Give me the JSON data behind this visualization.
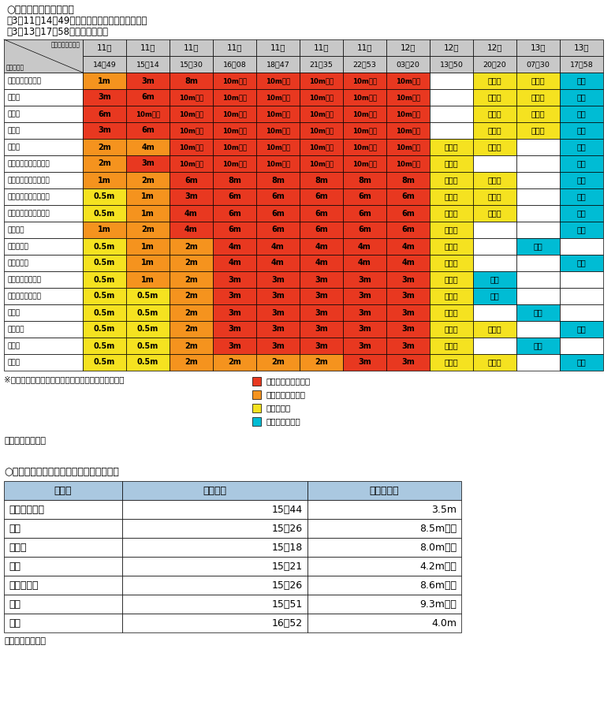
{
  "title1": "○津波警報等の発表状況",
  "bullet1": "・3月11日14時49分　津波警報（大津波）等発表",
  "bullet2": "・3月13日17時58分　すべて解除",
  "header_row1": [
    "津波警報発表日時",
    "11日",
    "11日",
    "11日",
    "11日",
    "11日",
    "11日",
    "11日",
    "12日",
    "12日",
    "12日",
    "13日",
    "13日"
  ],
  "header_row2": [
    "津波予報区",
    "14：49",
    "15：14",
    "15：30",
    "16：08",
    "18：47",
    "21：35",
    "22：53",
    "03：20",
    "13：50",
    "20：20",
    "07：30",
    "17：58"
  ],
  "rows": [
    {
      "name": "青森県太平洋沿岸",
      "cells": [
        "1m",
        "3m",
        "8m",
        "10m以上",
        "10m以上",
        "10m以上",
        "10m以上",
        "10m以上",
        "",
        "切下げ",
        "切下げ",
        "解除"
      ],
      "colors": [
        "orange",
        "red",
        "red",
        "red",
        "red",
        "red",
        "red",
        "red",
        "white",
        "yellow",
        "yellow",
        "cyan"
      ]
    },
    {
      "name": "岩手県",
      "cells": [
        "3m",
        "6m",
        "10m以上",
        "10m以上",
        "10m以上",
        "10m以上",
        "10m以上",
        "10m以上",
        "",
        "切下げ",
        "切下げ",
        "解除"
      ],
      "colors": [
        "red",
        "red",
        "red",
        "red",
        "red",
        "red",
        "red",
        "red",
        "white",
        "yellow",
        "yellow",
        "cyan"
      ]
    },
    {
      "name": "宮城県",
      "cells": [
        "6m",
        "10m以上",
        "10m以上",
        "10m以上",
        "10m以上",
        "10m以上",
        "10m以上",
        "10m以上",
        "",
        "切下げ",
        "切下げ",
        "解除"
      ],
      "colors": [
        "red",
        "red",
        "red",
        "red",
        "red",
        "red",
        "red",
        "red",
        "white",
        "yellow",
        "yellow",
        "cyan"
      ]
    },
    {
      "name": "福島県",
      "cells": [
        "3m",
        "6m",
        "10m以上",
        "10m以上",
        "10m以上",
        "10m以上",
        "10m以上",
        "10m以上",
        "",
        "切下げ",
        "切下げ",
        "解除"
      ],
      "colors": [
        "red",
        "red",
        "red",
        "red",
        "red",
        "red",
        "red",
        "red",
        "white",
        "yellow",
        "yellow",
        "cyan"
      ]
    },
    {
      "name": "茨城県",
      "cells": [
        "2m",
        "4m",
        "10m以上",
        "10m以上",
        "10m以上",
        "10m以上",
        "10m以上",
        "10m以上",
        "切下げ",
        "切下げ",
        "",
        "解除"
      ],
      "colors": [
        "orange",
        "orange",
        "red",
        "red",
        "red",
        "red",
        "red",
        "red",
        "yellow",
        "yellow",
        "white",
        "cyan"
      ]
    },
    {
      "name": "千葉県九十九里・外房",
      "cells": [
        "2m",
        "3m",
        "10m以上",
        "10m以上",
        "10m以上",
        "10m以上",
        "10m以上",
        "10m以上",
        "切下げ",
        "",
        "",
        "解除"
      ],
      "colors": [
        "orange",
        "red",
        "red",
        "red",
        "red",
        "red",
        "red",
        "red",
        "yellow",
        "white",
        "white",
        "cyan"
      ]
    },
    {
      "name": "北海道太平洋沿岸中部",
      "cells": [
        "1m",
        "2m",
        "6m",
        "8m",
        "8m",
        "8m",
        "8m",
        "8m",
        "切下げ",
        "切下げ",
        "",
        "解除"
      ],
      "colors": [
        "orange",
        "orange",
        "red",
        "red",
        "red",
        "red",
        "red",
        "red",
        "yellow",
        "yellow",
        "white",
        "cyan"
      ]
    },
    {
      "name": "北海道太平洋沿岸東部",
      "cells": [
        "0.5m",
        "1m",
        "3m",
        "6m",
        "6m",
        "6m",
        "6m",
        "6m",
        "切下げ",
        "切下げ",
        "",
        "解除"
      ],
      "colors": [
        "yellow",
        "orange",
        "red",
        "red",
        "red",
        "red",
        "red",
        "red",
        "yellow",
        "yellow",
        "white",
        "cyan"
      ]
    },
    {
      "name": "北海道太平洋沿岸西部",
      "cells": [
        "0.5m",
        "1m",
        "4m",
        "6m",
        "6m",
        "6m",
        "6m",
        "6m",
        "切下げ",
        "切下げ",
        "",
        "解除"
      ],
      "colors": [
        "yellow",
        "orange",
        "red",
        "red",
        "red",
        "red",
        "red",
        "red",
        "yellow",
        "yellow",
        "white",
        "cyan"
      ]
    },
    {
      "name": "伊豆諸島",
      "cells": [
        "1m",
        "2m",
        "4m",
        "6m",
        "6m",
        "6m",
        "6m",
        "6m",
        "切下げ",
        "",
        "",
        "解除"
      ],
      "colors": [
        "orange",
        "orange",
        "red",
        "red",
        "red",
        "red",
        "red",
        "red",
        "yellow",
        "white",
        "white",
        "cyan"
      ]
    },
    {
      "name": "千葉県内房",
      "cells": [
        "0.5m",
        "1m",
        "2m",
        "4m",
        "4m",
        "4m",
        "4m",
        "4m",
        "切下げ",
        "",
        "解除",
        ""
      ],
      "colors": [
        "yellow",
        "orange",
        "orange",
        "red",
        "red",
        "red",
        "red",
        "red",
        "yellow",
        "white",
        "cyan",
        "white"
      ]
    },
    {
      "name": "小笠原諸島",
      "cells": [
        "0.5m",
        "1m",
        "2m",
        "4m",
        "4m",
        "4m",
        "4m",
        "4m",
        "切下げ",
        "",
        "",
        "解除"
      ],
      "colors": [
        "yellow",
        "orange",
        "orange",
        "red",
        "red",
        "red",
        "red",
        "red",
        "yellow",
        "white",
        "white",
        "cyan"
      ]
    },
    {
      "name": "青森県日本海沿岸",
      "cells": [
        "0.5m",
        "1m",
        "2m",
        "3m",
        "3m",
        "3m",
        "3m",
        "3m",
        "切下げ",
        "解除",
        "",
        ""
      ],
      "colors": [
        "yellow",
        "orange",
        "orange",
        "red",
        "red",
        "red",
        "red",
        "red",
        "yellow",
        "cyan",
        "white",
        "white"
      ]
    },
    {
      "name": "相模湾・三浦半島",
      "cells": [
        "0.5m",
        "0.5m",
        "2m",
        "3m",
        "3m",
        "3m",
        "3m",
        "3m",
        "切下げ",
        "解除",
        "",
        ""
      ],
      "colors": [
        "yellow",
        "yellow",
        "orange",
        "red",
        "red",
        "red",
        "red",
        "red",
        "yellow",
        "cyan",
        "white",
        "white"
      ]
    },
    {
      "name": "静岡県",
      "cells": [
        "0.5m",
        "0.5m",
        "2m",
        "3m",
        "3m",
        "3m",
        "3m",
        "3m",
        "切下げ",
        "",
        "解除",
        ""
      ],
      "colors": [
        "yellow",
        "yellow",
        "orange",
        "red",
        "red",
        "red",
        "red",
        "red",
        "yellow",
        "white",
        "cyan",
        "white"
      ]
    },
    {
      "name": "和歌山県",
      "cells": [
        "0.5m",
        "0.5m",
        "2m",
        "3m",
        "3m",
        "3m",
        "3m",
        "3m",
        "切下げ",
        "切下げ",
        "",
        "解除"
      ],
      "colors": [
        "yellow",
        "yellow",
        "orange",
        "red",
        "red",
        "red",
        "red",
        "red",
        "yellow",
        "yellow",
        "white",
        "cyan"
      ]
    },
    {
      "name": "徳島県",
      "cells": [
        "0.5m",
        "0.5m",
        "2m",
        "3m",
        "3m",
        "3m",
        "3m",
        "3m",
        "切下げ",
        "",
        "解除",
        ""
      ],
      "colors": [
        "yellow",
        "yellow",
        "orange",
        "red",
        "red",
        "red",
        "red",
        "red",
        "yellow",
        "white",
        "cyan",
        "white"
      ]
    },
    {
      "name": "高知県",
      "cells": [
        "0.5m",
        "0.5m",
        "2m",
        "2m",
        "2m",
        "2m",
        "3m",
        "3m",
        "切下げ",
        "切下げ",
        "",
        "解除"
      ],
      "colors": [
        "yellow",
        "yellow",
        "orange",
        "orange",
        "orange",
        "orange",
        "red",
        "red",
        "yellow",
        "yellow",
        "white",
        "cyan"
      ]
    }
  ],
  "legend_note": "※津波警報（大津波）を発表した津波予報区のみ掲示",
  "legend_items": [
    [
      "津波警報（大津波）",
      "#e83820"
    ],
    [
      "津波警報（津波）",
      "#f5931e"
    ],
    [
      "津波注意報",
      "#f5e220"
    ],
    [
      "津波なし・解除",
      "#00bcd4"
    ]
  ],
  "source1": "出典：気象庁資料",
  "title2": "○津波の観測値（最大波）（津波観測点）",
  "obs_headers": [
    "地点名",
    "観測時刻",
    "津波の高さ"
  ],
  "obs_rows": [
    [
      "えりも町庶野",
      "15：44",
      "3.5m"
    ],
    [
      "宮古",
      "15：26",
      "8.5m以上"
    ],
    [
      "大船渡",
      "15：18",
      "8.0m以上"
    ],
    [
      "釜石",
      "15：21",
      "4.2m以上"
    ],
    [
      "石巻市鮎川",
      "15：26",
      "8.6m以上"
    ],
    [
      "相馬",
      "15：51",
      "9.3m以上"
    ],
    [
      "大洗",
      "16：52",
      "4.0m"
    ]
  ],
  "source2": "出典：気象庁資料",
  "color_map": {
    "red": "#e83820",
    "orange": "#f5931e",
    "yellow": "#f5e220",
    "cyan": "#00bcd4",
    "white": "#ffffff"
  }
}
